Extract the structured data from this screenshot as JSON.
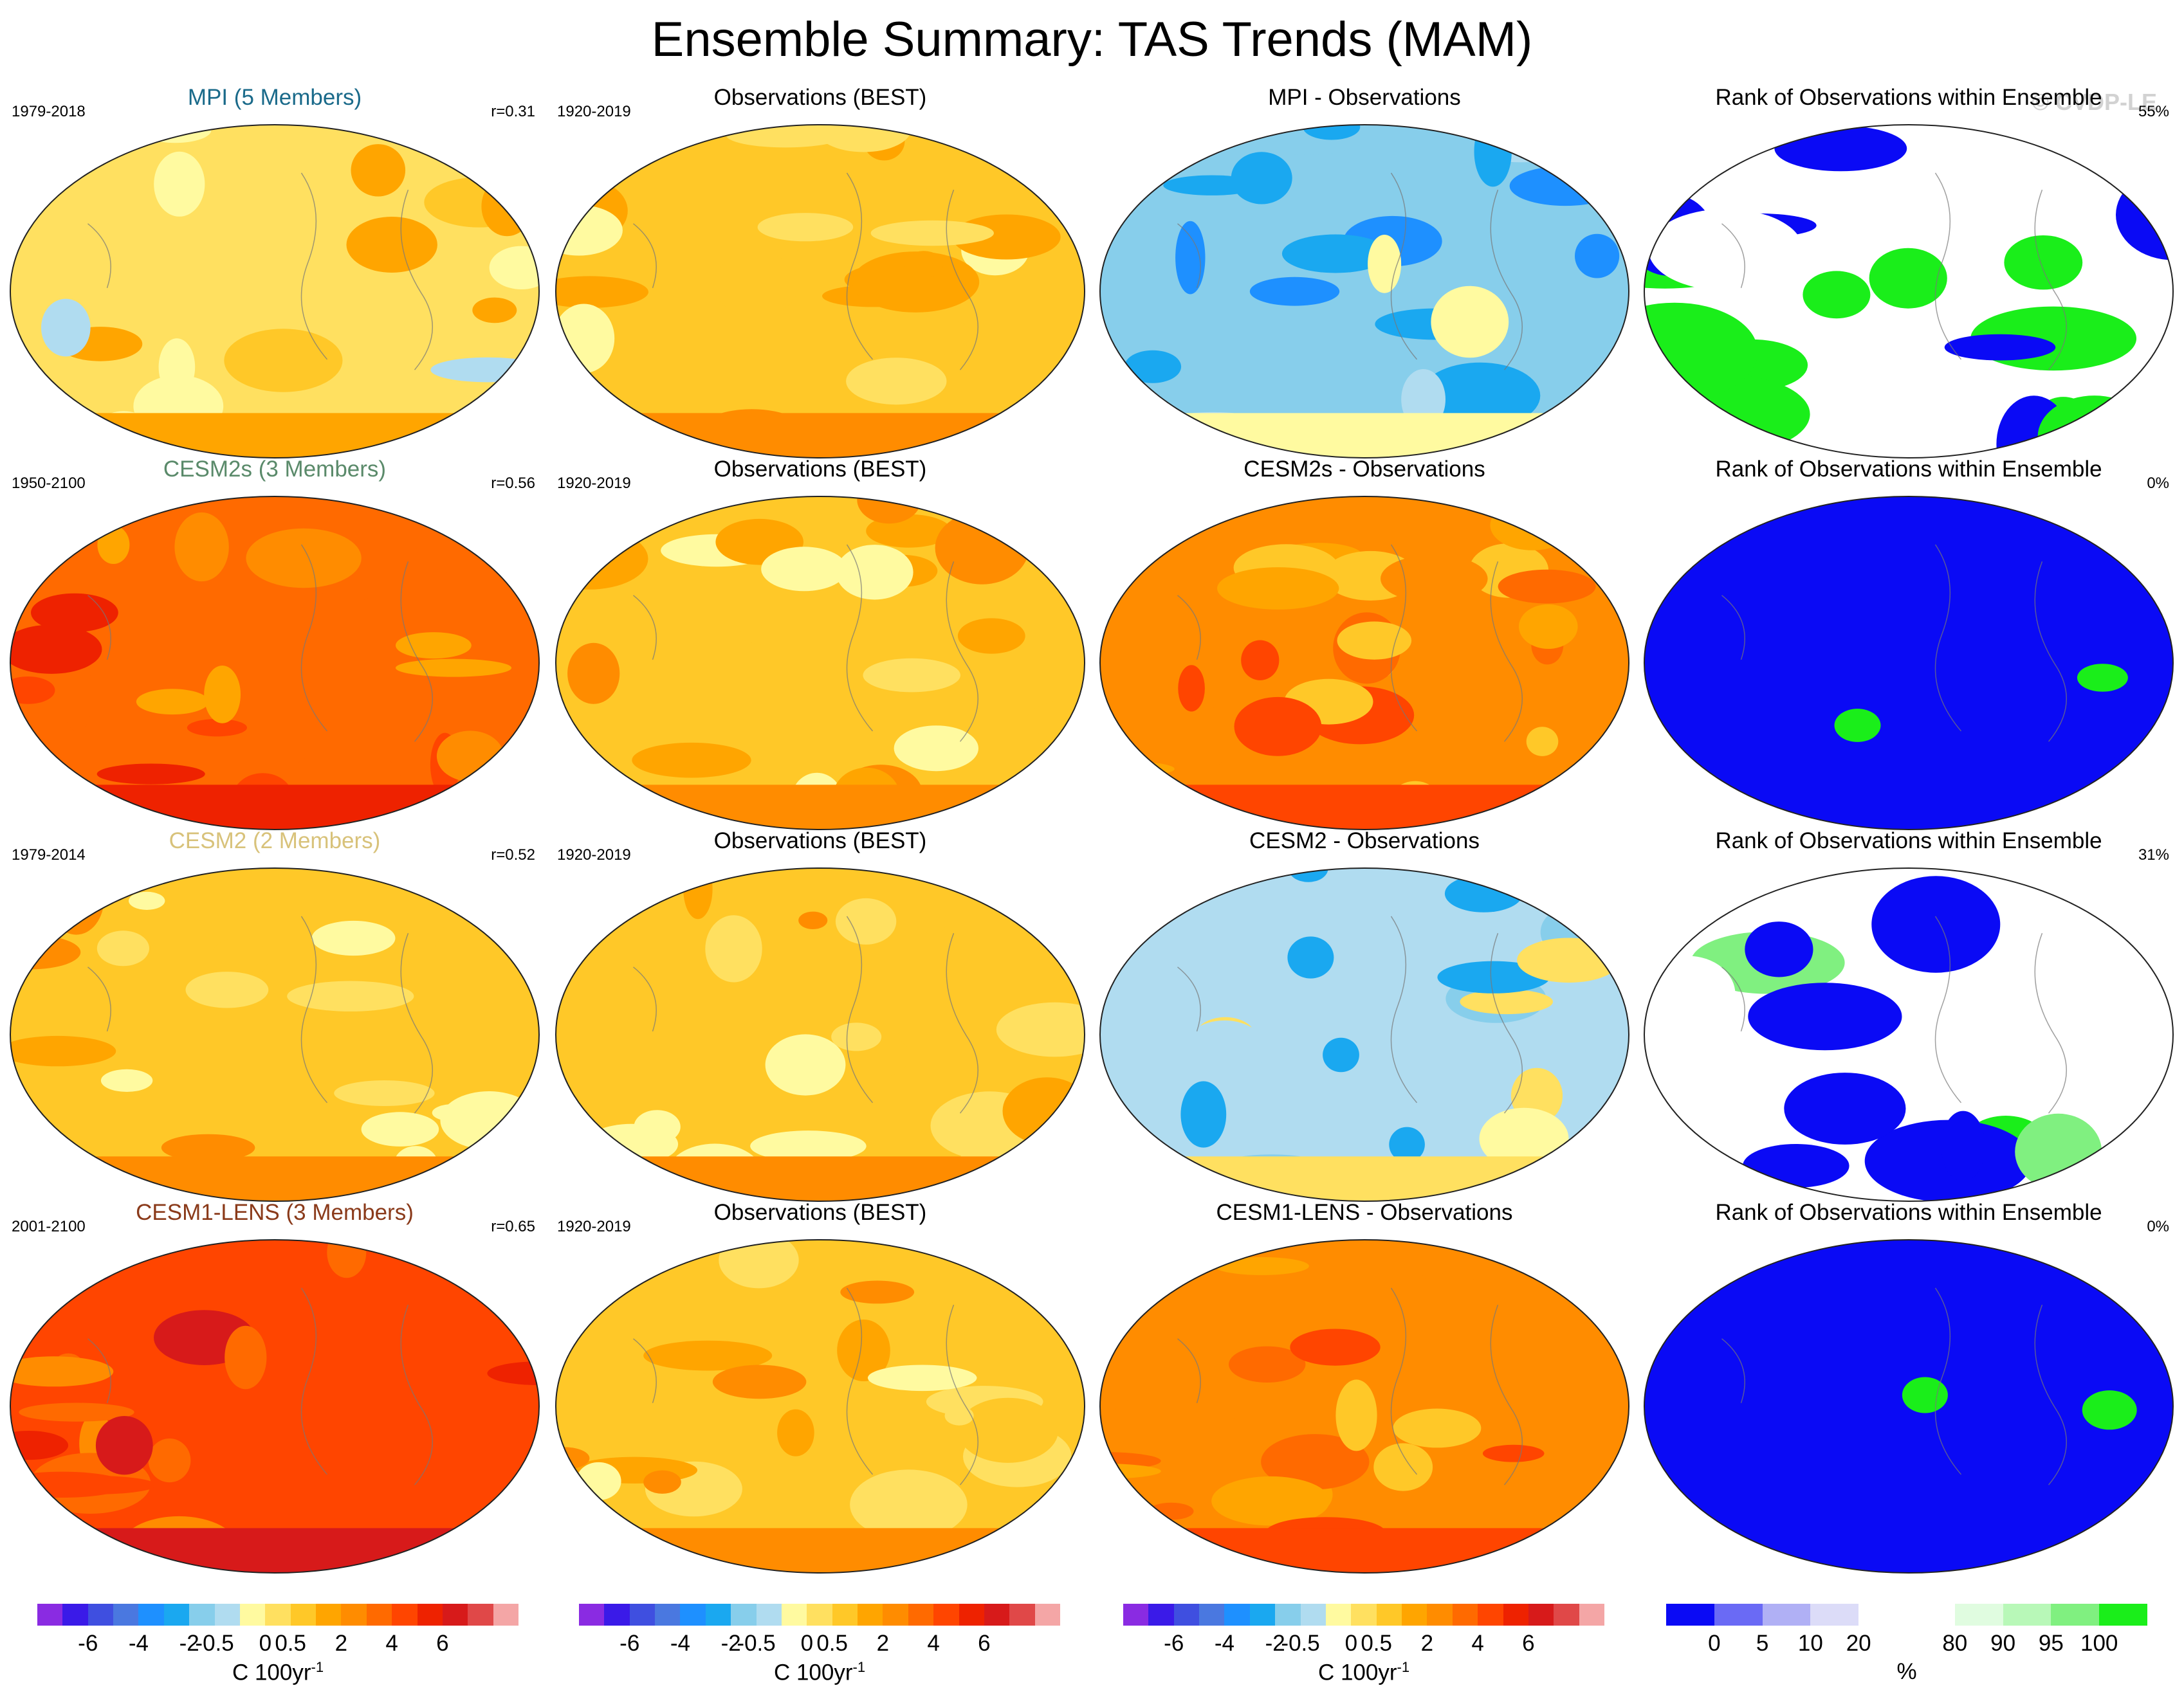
{
  "title": "Ensemble Summary: TAS Trends (MAM)",
  "watermark": "© CVDP-LE",
  "rows": [
    {
      "model": {
        "title": "MPI (5 Members)",
        "title_color": "#1a6a8a",
        "period": "1979-2018",
        "r": "r=0.31",
        "dominant_class": 9
      },
      "obs": {
        "title": "Observations (BEST)",
        "period": "1920-2019",
        "dominant_class": 10
      },
      "diff": {
        "title": "MPI - Observations",
        "dominant_class": 6
      },
      "rank": {
        "title": "Rank of Observations within Ensemble",
        "value": "55%",
        "dominant_class": 4
      }
    },
    {
      "model": {
        "title": "CESM2s (3 Members)",
        "title_color": "#5a8a6a",
        "period": "1950-2100",
        "r": "r=0.56",
        "dominant_class": 13
      },
      "obs": {
        "title": "Observations (BEST)",
        "period": "1920-2019",
        "dominant_class": 10
      },
      "diff": {
        "title": "CESM2s - Observations",
        "dominant_class": 12
      },
      "rank": {
        "title": "Rank of Observations within Ensemble",
        "value": "0%",
        "dominant_class": 0
      }
    },
    {
      "model": {
        "title": "CESM2 (2 Members)",
        "title_color": "#d8c27a",
        "period": "1979-2014",
        "r": "r=0.52",
        "dominant_class": 10
      },
      "obs": {
        "title": "Observations (BEST)",
        "period": "1920-2019",
        "dominant_class": 10
      },
      "diff": {
        "title": "CESM2 - Observations",
        "dominant_class": 7
      },
      "rank": {
        "title": "Rank of Observations within Ensemble",
        "value": "31%",
        "dominant_class": 4
      }
    },
    {
      "model": {
        "title": "CESM1-LENS (3 Members)",
        "title_color": "#8a3a1a",
        "period": "2001-2100",
        "r": "r=0.65",
        "dominant_class": 14
      },
      "obs": {
        "title": "Observations (BEST)",
        "period": "1920-2019",
        "dominant_class": 10
      },
      "diff": {
        "title": "CESM1-LENS - Observations",
        "dominant_class": 12
      },
      "rank": {
        "title": "Rank of Observations within Ensemble",
        "value": "0%",
        "dominant_class": 0
      }
    }
  ],
  "colorbar_trend": {
    "colors": [
      "#8a2be2",
      "#3a1ae8",
      "#3f4fe0",
      "#4a78e0",
      "#1e90ff",
      "#1aa8f0",
      "#87ceeb",
      "#b0dcf0",
      "#fffaa0",
      "#ffe060",
      "#ffc828",
      "#ffa500",
      "#ff8c00",
      "#ff6a00",
      "#ff4500",
      "#ee2200",
      "#d71a1a",
      "#e04848",
      "#f4a6a6"
    ],
    "tick_labels": [
      "-6",
      "-4",
      "-2",
      "-0.5",
      "0",
      "0.5",
      "2",
      "4",
      "6"
    ],
    "tick_boundaries": [
      2,
      4,
      6,
      7,
      9,
      10,
      12,
      14,
      16
    ],
    "unit": "C 100yr",
    "unit_sup": "-1"
  },
  "colorbar_rank": {
    "colors": [
      "#0a0af5",
      "#6a6af5",
      "#b0b0f5",
      "#dcdcf8",
      "#ffffff",
      "#ffffff",
      "#e0fce0",
      "#b8f8b8",
      "#80f080",
      "#1aee1a"
    ],
    "tick_labels": [
      "0",
      "5",
      "10",
      "20",
      "80",
      "90",
      "95",
      "100"
    ],
    "tick_boundaries": [
      1,
      2,
      3,
      4,
      6,
      7,
      8,
      9
    ],
    "unit": "%"
  },
  "chart_data": {
    "type": "heatmap",
    "title": "Ensemble Summary: TAS Trends (MAM)",
    "panels_layout": "4 rows x 4 columns of global maps",
    "columns": [
      "Model ensemble mean trend",
      "Observations (BEST) trend",
      "Model - Observations",
      "Rank of Observations within Ensemble"
    ],
    "rows": [
      {
        "model": "MPI (5 Members)",
        "period": "1979-2018",
        "pattern_correlation": 0.31,
        "obs_period": "1920-2019",
        "rank_percent": 55
      },
      {
        "model": "CESM2s (3 Members)",
        "period": "1950-2100",
        "pattern_correlation": 0.56,
        "obs_period": "1920-2019",
        "rank_percent": 0
      },
      {
        "model": "CESM2 (2 Members)",
        "period": "1979-2014",
        "pattern_correlation": 0.52,
        "obs_period": "1920-2019",
        "rank_percent": 31
      },
      {
        "model": "CESM1-LENS (3 Members)",
        "period": "2001-2100",
        "pattern_correlation": 0.65,
        "obs_period": "1920-2019",
        "rank_percent": 0
      }
    ],
    "trend_colorbar_ticks": [
      -6,
      -4,
      -2,
      -0.5,
      0,
      0.5,
      2,
      4,
      6
    ],
    "trend_units": "C 100yr-1",
    "rank_colorbar_ticks": [
      0,
      5,
      10,
      20,
      80,
      90,
      95,
      100
    ],
    "rank_units": "%"
  }
}
